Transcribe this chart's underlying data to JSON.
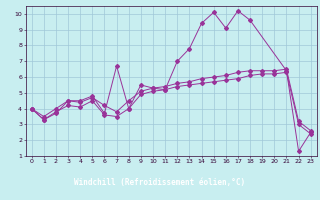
{
  "title": "",
  "xlabel": "Windchill (Refroidissement éolien,°C)",
  "xlim": [
    -0.5,
    23.5
  ],
  "ylim": [
    1,
    10.5
  ],
  "xticks": [
    0,
    1,
    2,
    3,
    4,
    5,
    6,
    7,
    8,
    9,
    10,
    11,
    12,
    13,
    14,
    15,
    16,
    17,
    18,
    19,
    20,
    21,
    22,
    23
  ],
  "yticks": [
    1,
    2,
    3,
    4,
    5,
    6,
    7,
    8,
    9,
    10
  ],
  "bg_color": "#c8eef0",
  "grid_color": "#a0c8d8",
  "line_color": "#993399",
  "xlabel_bg": "#7b5ea7",
  "xlabel_fg": "#ffffff",
  "line1_x": [
    0,
    1,
    2,
    3,
    4,
    5,
    6,
    7,
    8,
    9,
    10,
    11,
    12,
    13,
    14,
    15,
    16,
    17,
    18,
    21,
    22,
    23
  ],
  "line1_y": [
    4.0,
    3.3,
    3.7,
    4.5,
    4.5,
    4.8,
    3.7,
    6.7,
    4.0,
    5.5,
    5.3,
    5.2,
    7.0,
    7.8,
    9.4,
    10.1,
    9.1,
    10.2,
    9.6,
    6.4,
    1.3,
    2.5
  ],
  "line2_x": [
    0,
    1,
    2,
    3,
    4,
    5,
    6,
    7,
    8,
    9,
    10,
    11,
    12,
    13,
    14,
    15,
    16,
    17,
    18,
    19,
    20,
    21,
    22,
    23
  ],
  "line2_y": [
    4.0,
    3.5,
    4.0,
    4.5,
    4.4,
    4.7,
    4.2,
    3.8,
    4.5,
    5.1,
    5.3,
    5.4,
    5.6,
    5.7,
    5.9,
    6.0,
    6.1,
    6.3,
    6.4,
    6.4,
    6.4,
    6.5,
    3.2,
    2.6
  ],
  "line3_x": [
    0,
    1,
    2,
    3,
    4,
    5,
    6,
    7,
    8,
    9,
    10,
    11,
    12,
    13,
    14,
    15,
    16,
    17,
    18,
    19,
    20,
    21,
    22,
    23
  ],
  "line3_y": [
    4.0,
    3.3,
    3.8,
    4.2,
    4.1,
    4.5,
    3.6,
    3.5,
    4.0,
    4.9,
    5.1,
    5.2,
    5.4,
    5.5,
    5.6,
    5.7,
    5.8,
    5.9,
    6.1,
    6.2,
    6.2,
    6.3,
    3.0,
    2.4
  ]
}
